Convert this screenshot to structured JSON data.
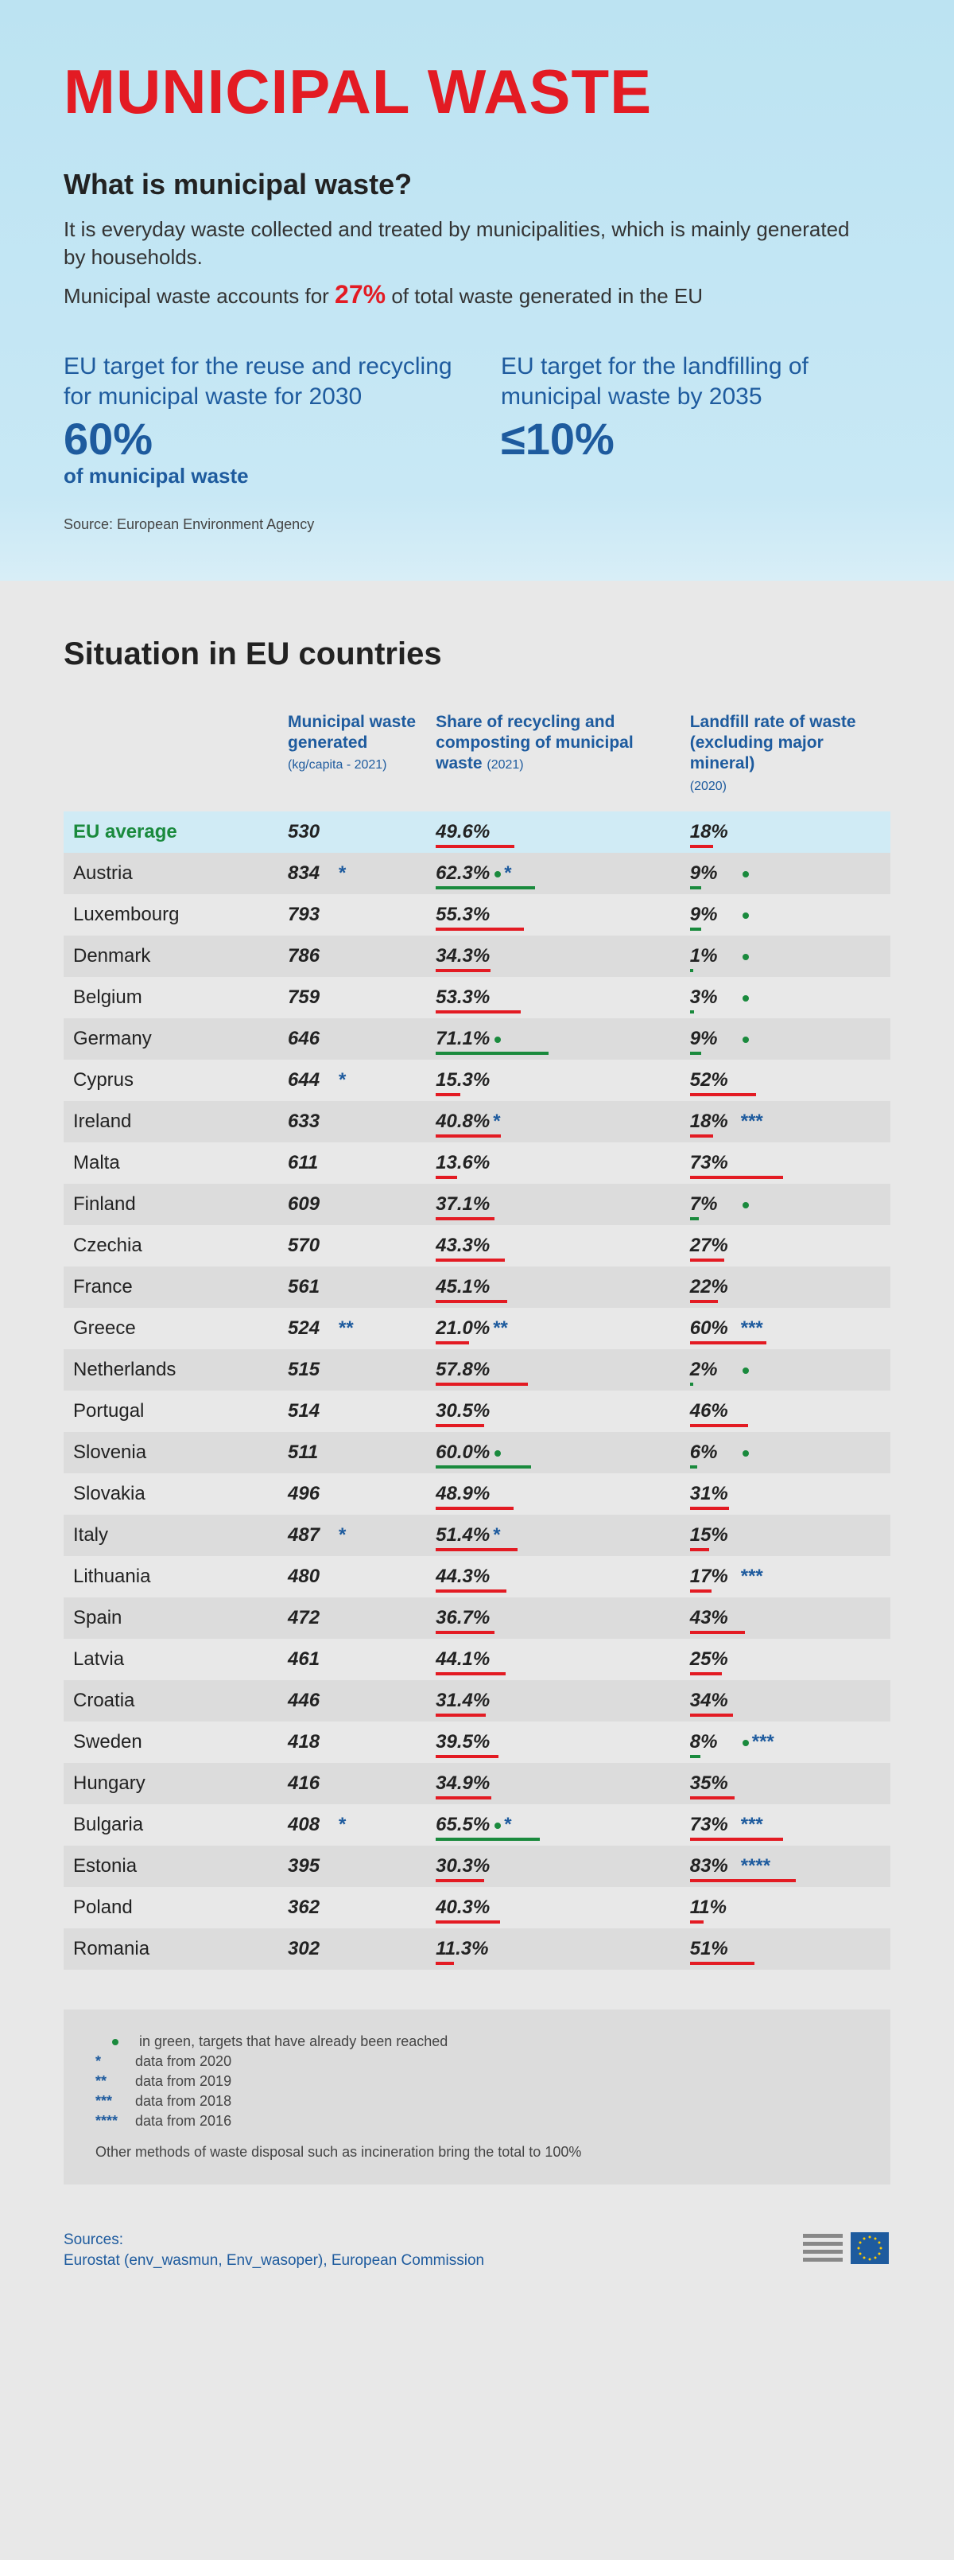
{
  "header": {
    "title": "MUNICIPAL WASTE",
    "sub_heading": "What is municipal waste?",
    "desc1": "It is everyday waste collected and treated by municipalities, which is mainly generated by households.",
    "desc2_pre": "Municipal waste accounts for ",
    "desc2_pct": "27%",
    "desc2_post": " of total waste generated in the EU",
    "source": "Source: European Environment Agency"
  },
  "targets": {
    "left_title": "EU target for the reuse and recycling for municipal waste for 2030",
    "left_value": "60%",
    "left_sub": "of municipal waste",
    "right_title": "EU target  for the landfilling of municipal waste by 2035",
    "right_value": "≤10%"
  },
  "table": {
    "title": "Situation in EU countries",
    "col1_label": "Municipal waste generated",
    "col1_sub": "(kg/capita - 2021)",
    "col2_label": "Share of recycling and composting of municipal waste",
    "col2_sub": "(2021)",
    "col3_label": "Landfill rate of waste (excluding major mineral)",
    "col3_sub": "(2020)",
    "eu_avg_label": "EU average",
    "rows": [
      {
        "name": "EU average",
        "waste": "530",
        "waste_star": "",
        "recycle": "49.6%",
        "recycle_bar": 49.6,
        "recycle_target": false,
        "recycle_star": "",
        "landfill": "18%",
        "landfill_bar": 18,
        "landfill_target": false,
        "landfill_star": "",
        "is_avg": true
      },
      {
        "name": "Austria",
        "waste": "834",
        "waste_star": "*",
        "recycle": "62.3%",
        "recycle_bar": 62.3,
        "recycle_target": true,
        "recycle_star": "*",
        "landfill": "9%",
        "landfill_bar": 9,
        "landfill_target": true,
        "landfill_star": ""
      },
      {
        "name": "Luxembourg",
        "waste": "793",
        "waste_star": "",
        "recycle": "55.3%",
        "recycle_bar": 55.3,
        "recycle_target": false,
        "recycle_star": "",
        "landfill": "9%",
        "landfill_bar": 9,
        "landfill_target": true,
        "landfill_star": ""
      },
      {
        "name": "Denmark",
        "waste": "786",
        "waste_star": "",
        "recycle": "34.3%",
        "recycle_bar": 34.3,
        "recycle_target": false,
        "recycle_star": "",
        "landfill": "1%",
        "landfill_bar": 1,
        "landfill_target": true,
        "landfill_star": ""
      },
      {
        "name": "Belgium",
        "waste": "759",
        "waste_star": "",
        "recycle": "53.3%",
        "recycle_bar": 53.3,
        "recycle_target": false,
        "recycle_star": "",
        "landfill": "3%",
        "landfill_bar": 3,
        "landfill_target": true,
        "landfill_star": ""
      },
      {
        "name": "Germany",
        "waste": "646",
        "waste_star": "",
        "recycle": "71.1%",
        "recycle_bar": 71.1,
        "recycle_target": true,
        "recycle_star": "",
        "landfill": "9%",
        "landfill_bar": 9,
        "landfill_target": true,
        "landfill_star": ""
      },
      {
        "name": "Cyprus",
        "waste": "644",
        "waste_star": "*",
        "recycle": "15.3%",
        "recycle_bar": 15.3,
        "recycle_target": false,
        "recycle_star": "",
        "landfill": "52%",
        "landfill_bar": 52,
        "landfill_target": false,
        "landfill_star": ""
      },
      {
        "name": "Ireland",
        "waste": "633",
        "waste_star": "",
        "recycle": "40.8%",
        "recycle_bar": 40.8,
        "recycle_target": false,
        "recycle_star": "*",
        "landfill": "18%",
        "landfill_bar": 18,
        "landfill_target": false,
        "landfill_star": "***"
      },
      {
        "name": "Malta",
        "waste": "611",
        "waste_star": "",
        "recycle": "13.6%",
        "recycle_bar": 13.6,
        "recycle_target": false,
        "recycle_star": "",
        "landfill": "73%",
        "landfill_bar": 73,
        "landfill_target": false,
        "landfill_star": ""
      },
      {
        "name": "Finland",
        "waste": "609",
        "waste_star": "",
        "recycle": "37.1%",
        "recycle_bar": 37.1,
        "recycle_target": false,
        "recycle_star": "",
        "landfill": "7%",
        "landfill_bar": 7,
        "landfill_target": true,
        "landfill_star": ""
      },
      {
        "name": "Czechia",
        "waste": "570",
        "waste_star": "",
        "recycle": "43.3%",
        "recycle_bar": 43.3,
        "recycle_target": false,
        "recycle_star": "",
        "landfill": "27%",
        "landfill_bar": 27,
        "landfill_target": false,
        "landfill_star": ""
      },
      {
        "name": "France",
        "waste": "561",
        "waste_star": "",
        "recycle": "45.1%",
        "recycle_bar": 45.1,
        "recycle_target": false,
        "recycle_star": "",
        "landfill": "22%",
        "landfill_bar": 22,
        "landfill_target": false,
        "landfill_star": ""
      },
      {
        "name": "Greece",
        "waste": "524",
        "waste_star": "**",
        "recycle": "21.0%",
        "recycle_bar": 21.0,
        "recycle_target": false,
        "recycle_star": "**",
        "landfill": "60%",
        "landfill_bar": 60,
        "landfill_target": false,
        "landfill_star": "***"
      },
      {
        "name": "Netherlands",
        "waste": "515",
        "waste_star": "",
        "recycle": "57.8%",
        "recycle_bar": 57.8,
        "recycle_target": false,
        "recycle_star": "",
        "landfill": "2%",
        "landfill_bar": 2,
        "landfill_target": true,
        "landfill_star": ""
      },
      {
        "name": "Portugal",
        "waste": "514",
        "waste_star": "",
        "recycle": "30.5%",
        "recycle_bar": 30.5,
        "recycle_target": false,
        "recycle_star": "",
        "landfill": "46%",
        "landfill_bar": 46,
        "landfill_target": false,
        "landfill_star": ""
      },
      {
        "name": "Slovenia",
        "waste": "511",
        "waste_star": "",
        "recycle": "60.0%",
        "recycle_bar": 60.0,
        "recycle_target": true,
        "recycle_star": "",
        "landfill": "6%",
        "landfill_bar": 6,
        "landfill_target": true,
        "landfill_star": ""
      },
      {
        "name": "Slovakia",
        "waste": "496",
        "waste_star": "",
        "recycle": "48.9%",
        "recycle_bar": 48.9,
        "recycle_target": false,
        "recycle_star": "",
        "landfill": "31%",
        "landfill_bar": 31,
        "landfill_target": false,
        "landfill_star": ""
      },
      {
        "name": "Italy",
        "waste": "487",
        "waste_star": "*",
        "recycle": "51.4%",
        "recycle_bar": 51.4,
        "recycle_target": false,
        "recycle_star": "*",
        "landfill": "15%",
        "landfill_bar": 15,
        "landfill_target": false,
        "landfill_star": ""
      },
      {
        "name": "Lithuania",
        "waste": "480",
        "waste_star": "",
        "recycle": "44.3%",
        "recycle_bar": 44.3,
        "recycle_target": false,
        "recycle_star": "",
        "landfill": "17%",
        "landfill_bar": 17,
        "landfill_target": false,
        "landfill_star": "***"
      },
      {
        "name": "Spain",
        "waste": "472",
        "waste_star": "",
        "recycle": "36.7%",
        "recycle_bar": 36.7,
        "recycle_target": false,
        "recycle_star": "",
        "landfill": "43%",
        "landfill_bar": 43,
        "landfill_target": false,
        "landfill_star": ""
      },
      {
        "name": "Latvia",
        "waste": "461",
        "waste_star": "",
        "recycle": "44.1%",
        "recycle_bar": 44.1,
        "recycle_target": false,
        "recycle_star": "",
        "landfill": "25%",
        "landfill_bar": 25,
        "landfill_target": false,
        "landfill_star": ""
      },
      {
        "name": "Croatia",
        "waste": "446",
        "waste_star": "",
        "recycle": "31.4%",
        "recycle_bar": 31.4,
        "recycle_target": false,
        "recycle_star": "",
        "landfill": "34%",
        "landfill_bar": 34,
        "landfill_target": false,
        "landfill_star": ""
      },
      {
        "name": "Sweden",
        "waste": "418",
        "waste_star": "",
        "recycle": "39.5%",
        "recycle_bar": 39.5,
        "recycle_target": false,
        "recycle_star": "",
        "landfill": "8%",
        "landfill_bar": 8,
        "landfill_target": true,
        "landfill_star": "***"
      },
      {
        "name": "Hungary",
        "waste": "416",
        "waste_star": "",
        "recycle": "34.9%",
        "recycle_bar": 34.9,
        "recycle_target": false,
        "recycle_star": "",
        "landfill": "35%",
        "landfill_bar": 35,
        "landfill_target": false,
        "landfill_star": ""
      },
      {
        "name": "Bulgaria",
        "waste": "408",
        "waste_star": "*",
        "recycle": "65.5%",
        "recycle_bar": 65.5,
        "recycle_target": true,
        "recycle_star": "*",
        "landfill": "73%",
        "landfill_bar": 73,
        "landfill_target": false,
        "landfill_star": "***"
      },
      {
        "name": "Estonia",
        "waste": "395",
        "waste_star": "",
        "recycle": "30.3%",
        "recycle_bar": 30.3,
        "recycle_target": false,
        "recycle_star": "",
        "landfill": "83%",
        "landfill_bar": 83,
        "landfill_target": false,
        "landfill_star": "****"
      },
      {
        "name": "Poland",
        "waste": "362",
        "waste_star": "",
        "recycle": "40.3%",
        "recycle_bar": 40.3,
        "recycle_target": false,
        "recycle_star": "",
        "landfill": "11%",
        "landfill_bar": 11,
        "landfill_target": false,
        "landfill_star": ""
      },
      {
        "name": "Romania",
        "waste": "302",
        "waste_star": "",
        "recycle": "11.3%",
        "recycle_bar": 11.3,
        "recycle_target": false,
        "recycle_star": "",
        "landfill": "51%",
        "landfill_bar": 51,
        "landfill_target": false,
        "landfill_star": ""
      }
    ]
  },
  "legend": {
    "dot_label": "in green, targets that have already been reached",
    "s1": "data from 2020",
    "s2": "data from 2019",
    "s3": "data from 2018",
    "s4": "data from 2016",
    "note": "Other methods of waste disposal such as incineration bring the total to 100%"
  },
  "footer": {
    "sources_label": "Sources:",
    "sources_text": "Eurostat (env_wasmun, Env_wasoper), European Commission"
  },
  "colors": {
    "red": "#e31b23",
    "blue": "#1e5b9e",
    "green": "#1a8a3d"
  }
}
